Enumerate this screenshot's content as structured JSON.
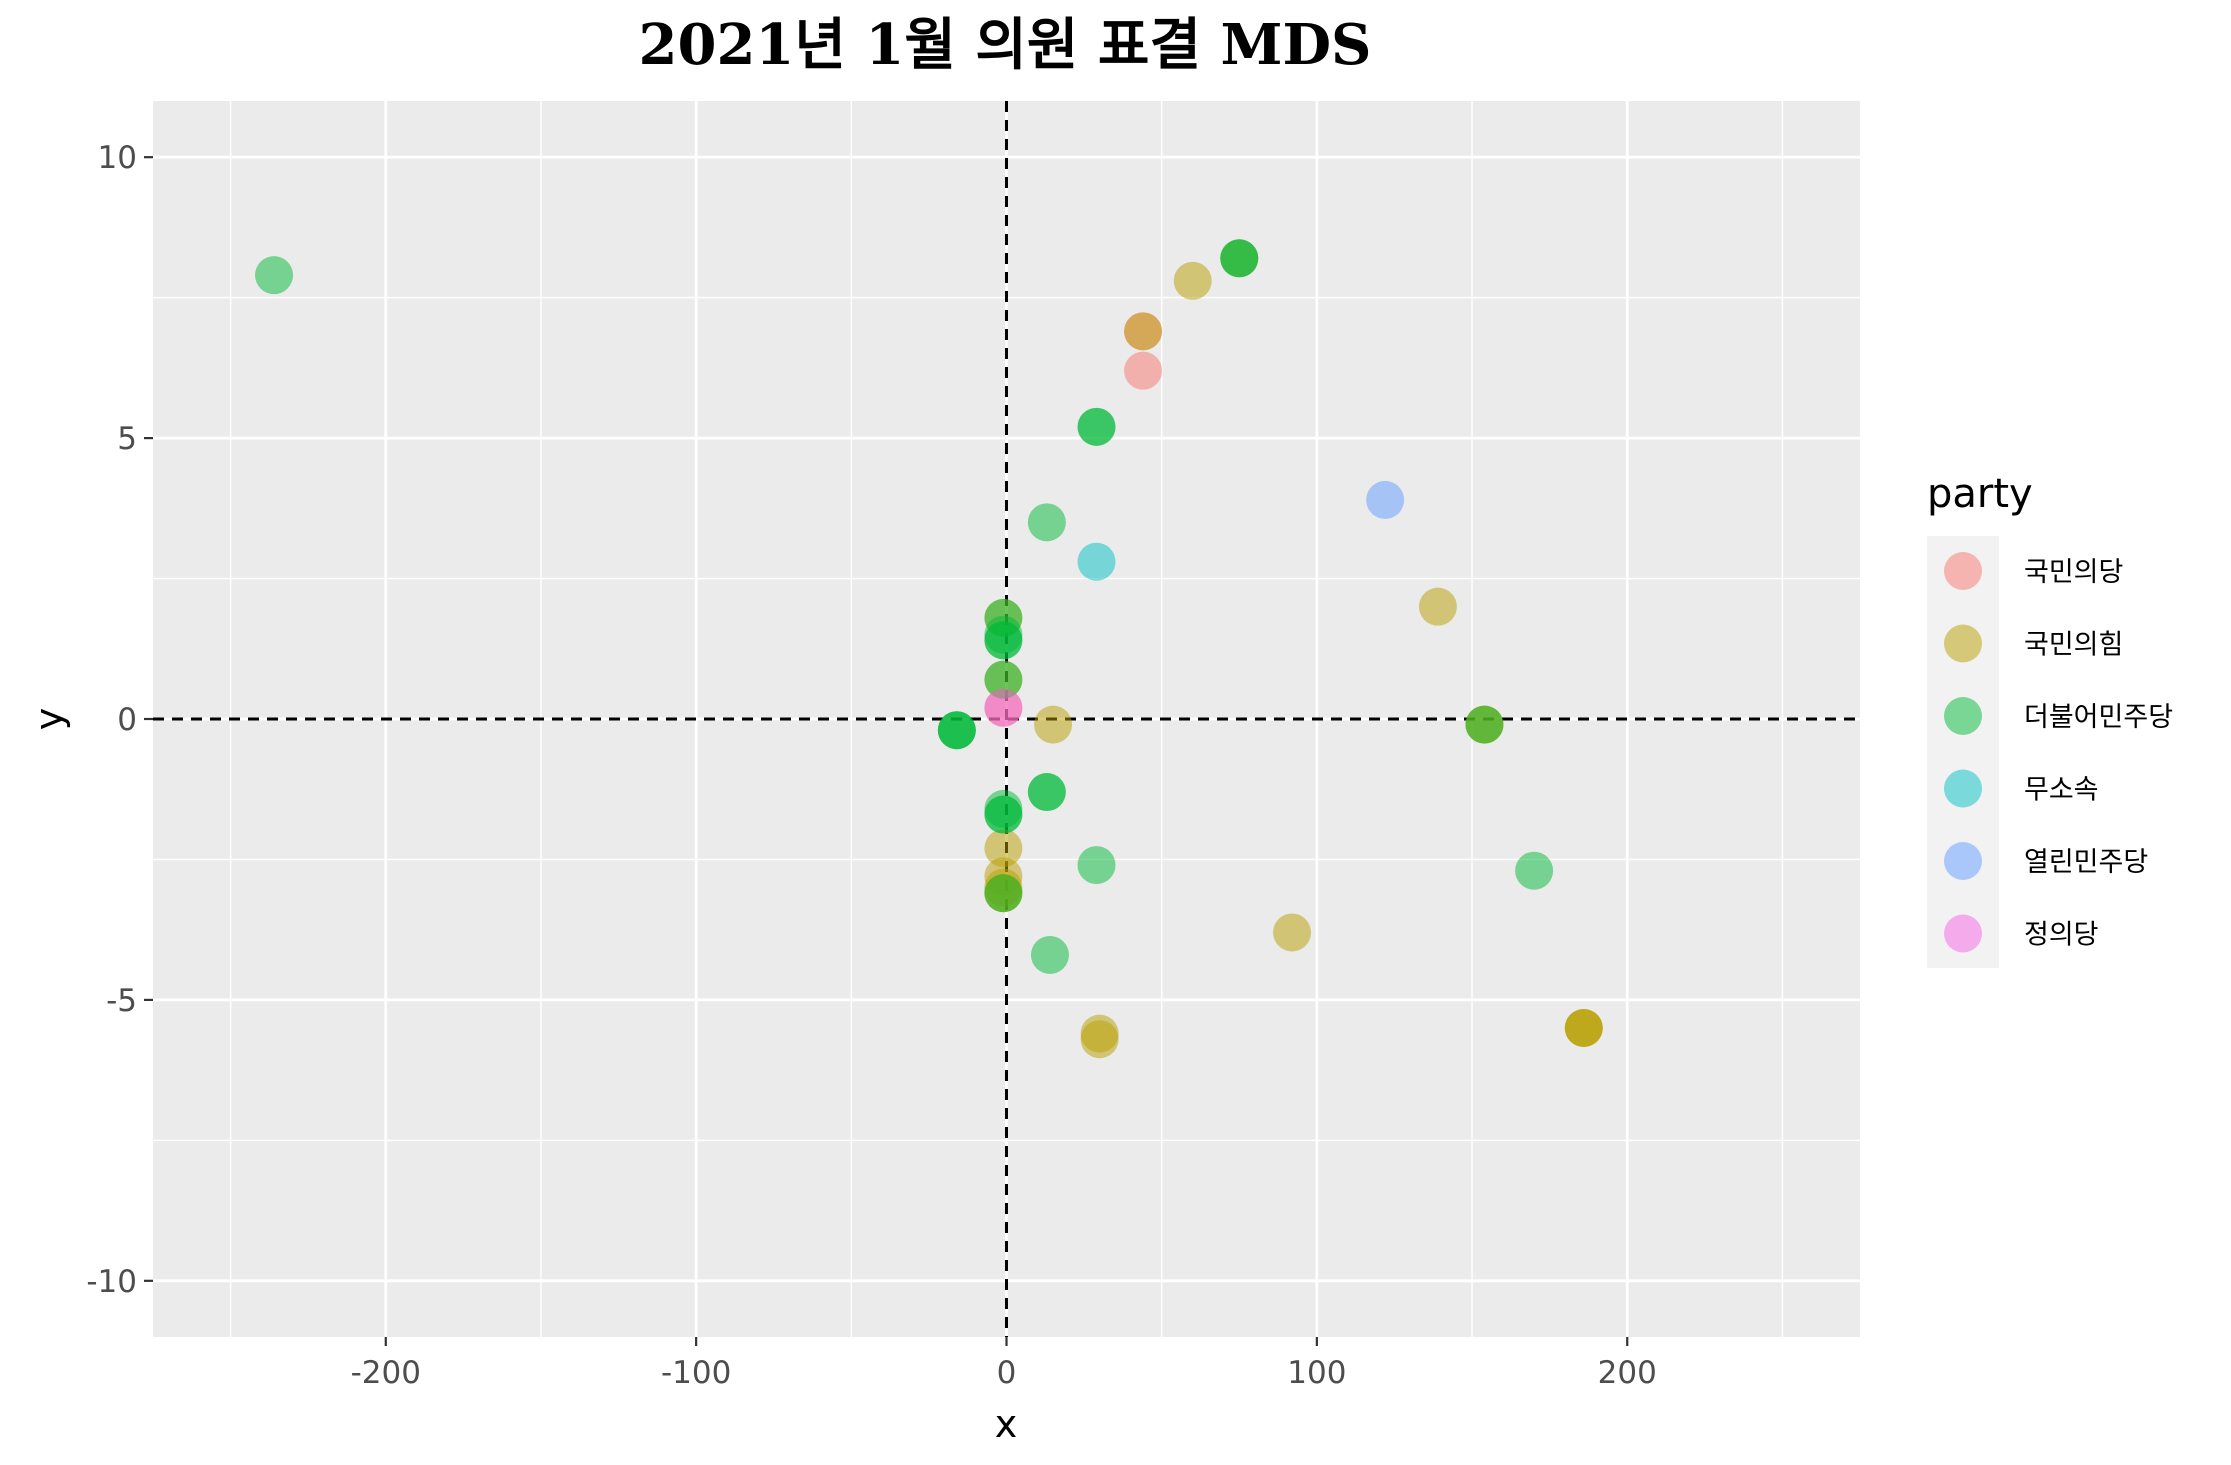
{
  "chart_data": {
    "type": "scatter",
    "title": "2021년 1월 의원 표결 MDS",
    "xlabel": "x",
    "ylabel": "y",
    "xlim": [
      -275,
      275
    ],
    "ylim": [
      -11,
      11
    ],
    "xticks": [
      -200,
      -100,
      0,
      100,
      200
    ],
    "yticks": [
      -10,
      -5,
      0,
      5,
      10
    ],
    "grid": true,
    "reference_lines": {
      "x": 0,
      "y": 0,
      "style": "dashed"
    },
    "legend": {
      "title": "party",
      "placement": "right"
    },
    "series": [
      {
        "name": "국민의당",
        "color": "#F8766D",
        "points": [
          {
            "x": 44,
            "y": 6.2
          },
          {
            "x": 44,
            "y": 6.9
          },
          {
            "x": -1,
            "y": 0.2
          }
        ]
      },
      {
        "name": "국민의힘",
        "color": "#B79F00",
        "points": [
          {
            "x": 60,
            "y": 7.8
          },
          {
            "x": 44,
            "y": 6.9
          },
          {
            "x": 75,
            "y": 8.2
          },
          {
            "x": 139,
            "y": 2.0
          },
          {
            "x": 154,
            "y": -0.1
          },
          {
            "x": 154,
            "y": -0.1
          },
          {
            "x": 15,
            "y": -0.1
          },
          {
            "x": -1,
            "y": 1.8
          },
          {
            "x": -1,
            "y": 0.7
          },
          {
            "x": -1,
            "y": -2.3
          },
          {
            "x": -1,
            "y": -2.8
          },
          {
            "x": -1,
            "y": -3.0
          },
          {
            "x": -1,
            "y": -3.1
          },
          {
            "x": -1,
            "y": -3.1
          },
          {
            "x": 92,
            "y": -3.8
          },
          {
            "x": 30,
            "y": -5.6
          },
          {
            "x": 30,
            "y": -5.7
          },
          {
            "x": 186,
            "y": -5.5
          },
          {
            "x": 186,
            "y": -5.5
          },
          {
            "x": 186,
            "y": -5.5
          }
        ]
      },
      {
        "name": "더불어민주당",
        "color": "#00BA38",
        "points": [
          {
            "x": -236,
            "y": 7.9
          },
          {
            "x": 75,
            "y": 8.2
          },
          {
            "x": 75,
            "y": 8.2
          },
          {
            "x": 29,
            "y": 5.2
          },
          {
            "x": 29,
            "y": 5.2
          },
          {
            "x": 13,
            "y": 3.5
          },
          {
            "x": -1,
            "y": 1.8
          },
          {
            "x": -1,
            "y": 1.5
          },
          {
            "x": -1,
            "y": 1.4
          },
          {
            "x": -1,
            "y": 1.4
          },
          {
            "x": -1,
            "y": 0.7
          },
          {
            "x": -16,
            "y": -0.2
          },
          {
            "x": -16,
            "y": -0.2
          },
          {
            "x": -16,
            "y": -0.2
          },
          {
            "x": 154,
            "y": -0.1
          },
          {
            "x": 13,
            "y": -1.3
          },
          {
            "x": 13,
            "y": -1.3
          },
          {
            "x": -1,
            "y": -1.6
          },
          {
            "x": -1,
            "y": -1.7
          },
          {
            "x": -1,
            "y": -1.7
          },
          {
            "x": 29,
            "y": -2.6
          },
          {
            "x": 170,
            "y": -2.7
          },
          {
            "x": -1,
            "y": -3.1
          },
          {
            "x": 14,
            "y": -4.2
          }
        ]
      },
      {
        "name": "무소속",
        "color": "#00BFC4",
        "points": [
          {
            "x": 29,
            "y": 2.8
          }
        ]
      },
      {
        "name": "열린민주당",
        "color": "#619CFF",
        "points": [
          {
            "x": 122,
            "y": 3.9
          }
        ]
      },
      {
        "name": "정의당",
        "color": "#F564E3",
        "points": [
          {
            "x": -1,
            "y": 0.2
          }
        ]
      }
    ]
  }
}
